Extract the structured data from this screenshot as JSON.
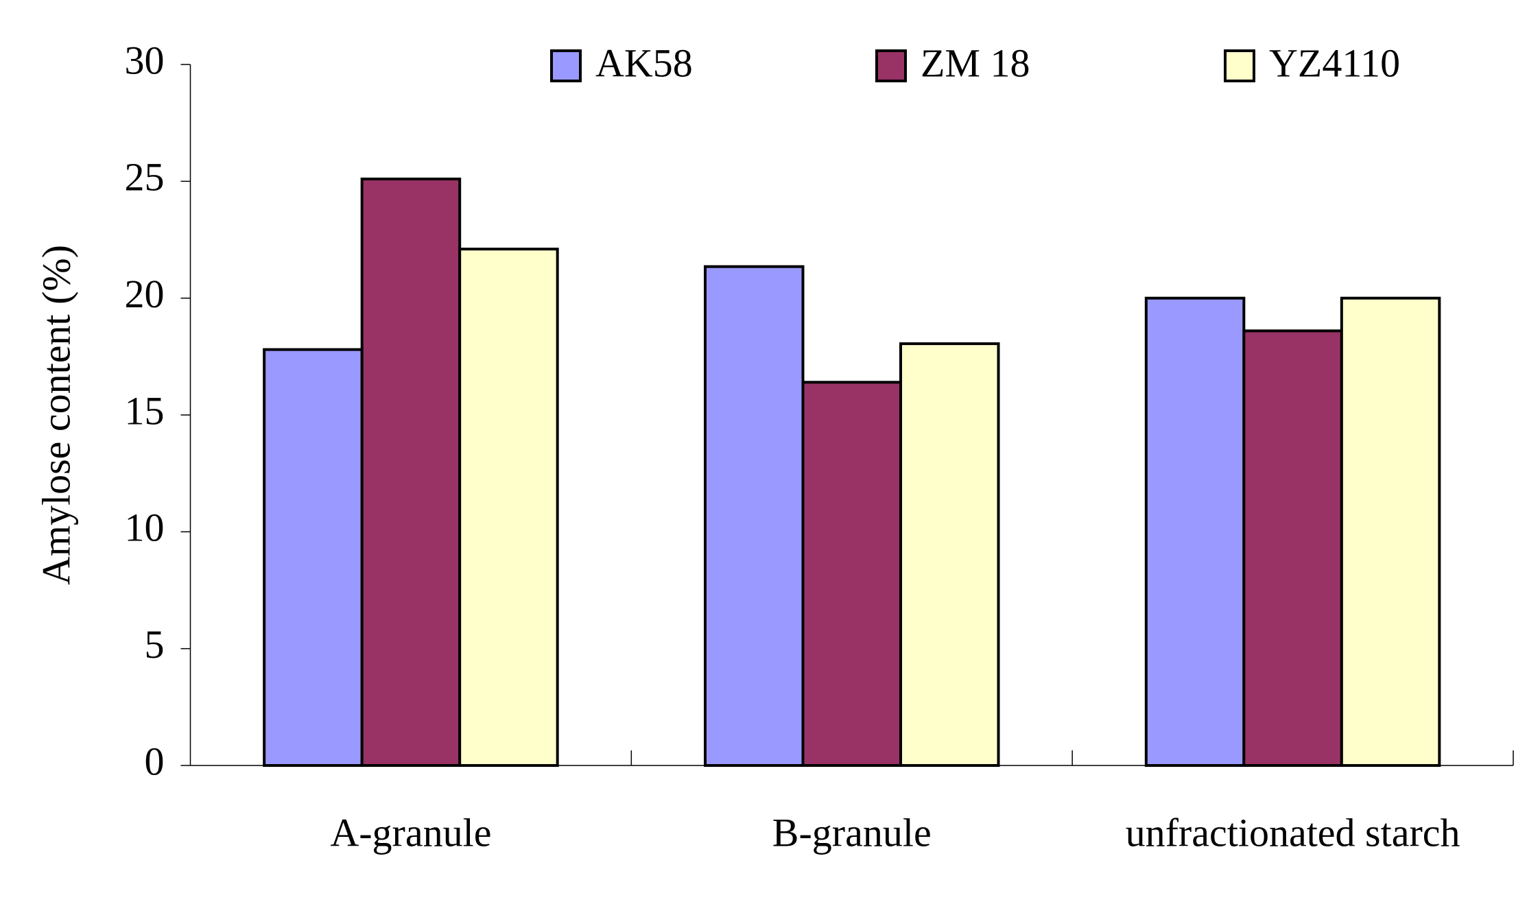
{
  "chart_data": {
    "type": "bar",
    "y_label": "Amylose content (%)",
    "categories": [
      "A-granule",
      "B-granule",
      "unfractionated starch"
    ],
    "series": [
      {
        "name": "AK58",
        "color": "#9999ff",
        "values": [
          17.8,
          21.35,
          20.0
        ]
      },
      {
        "name": "ZM 18",
        "color": "#993366",
        "values": [
          25.1,
          16.4,
          18.6
        ]
      },
      {
        "name": "YZ4110",
        "color": "#ffffcc",
        "values": [
          22.1,
          18.05,
          20.0
        ]
      }
    ],
    "ylim": [
      0,
      30
    ],
    "yticks": [
      0,
      5,
      10,
      15,
      20,
      25,
      30
    ],
    "grid": false,
    "legend": "top"
  }
}
